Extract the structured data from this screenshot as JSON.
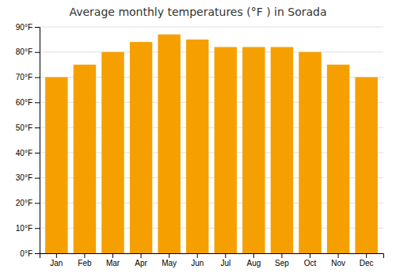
{
  "chart_data": {
    "type": "bar",
    "title": "Average monthly temperatures (°F ) in Sorada",
    "categories": [
      "Jan",
      "Feb",
      "Mar",
      "Apr",
      "May",
      "Jun",
      "Jul",
      "Aug",
      "Sep",
      "Oct",
      "Nov",
      "Dec"
    ],
    "values": [
      70,
      75,
      80,
      84,
      87,
      85,
      82,
      82,
      82,
      80,
      75,
      70
    ],
    "color": "#F5A000",
    "ylim": [
      0,
      90
    ],
    "yticks": [
      {
        "value": 0,
        "label": "0°F"
      },
      {
        "value": 10,
        "label": "10°F"
      },
      {
        "value": 20,
        "label": "20°F"
      },
      {
        "value": 30,
        "label": "30°F"
      },
      {
        "value": 40,
        "label": "40°F"
      },
      {
        "value": 50,
        "label": "50°F"
      },
      {
        "value": 60,
        "label": "60°F"
      },
      {
        "value": 70,
        "label": "70°F"
      },
      {
        "value": 80,
        "label": "80°F"
      },
      {
        "value": 90,
        "label": "90°F"
      }
    ],
    "grid": true
  }
}
